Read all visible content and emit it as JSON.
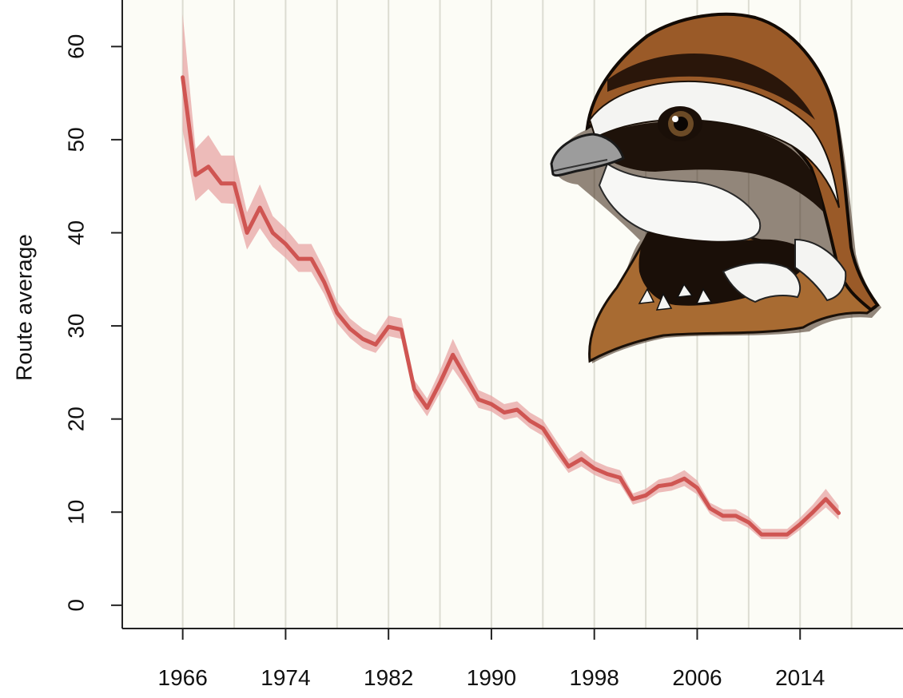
{
  "chart_data": {
    "type": "line",
    "title": "",
    "xlabel": "",
    "ylabel": "Route average",
    "xlim": [
      1961.3,
      2022
    ],
    "ylim": [
      -2.5,
      65
    ],
    "xticks": [
      1966,
      1974,
      1982,
      1990,
      1998,
      2006,
      2014
    ],
    "xtick_labels": [
      "1966",
      "1974",
      "1982",
      "1990",
      "1998",
      "2006",
      "2014"
    ],
    "yticks": [
      0,
      10,
      20,
      30,
      40,
      50,
      60
    ],
    "ytick_labels": [
      "0",
      "10",
      "20",
      "30",
      "40",
      "50",
      "60"
    ],
    "gridlines_x": [
      1966,
      1970,
      1974,
      1978,
      1982,
      1986,
      1990,
      1994,
      1998,
      2002,
      2006,
      2010,
      2014,
      2018
    ],
    "grid": "vertical",
    "legend": "none",
    "colors": {
      "line": "#cf5552",
      "band": "#e8a6a4",
      "plot_bg": "#fcfcf6",
      "grid": "#dcdcd2",
      "axis": "#222222"
    },
    "x": [
      1966,
      1967,
      1968,
      1969,
      1970,
      1971,
      1972,
      1973,
      1974,
      1975,
      1976,
      1977,
      1978,
      1979,
      1980,
      1981,
      1982,
      1983,
      1984,
      1985,
      1986,
      1987,
      1988,
      1989,
      1990,
      1991,
      1992,
      1993,
      1994,
      1995,
      1996,
      1997,
      1998,
      1999,
      2000,
      2001,
      2002,
      2003,
      2004,
      2005,
      2006,
      2007,
      2008,
      2009,
      2010,
      2011,
      2012,
      2013,
      2014,
      2015,
      2016,
      2017
    ],
    "series": [
      {
        "values": [
          56.7,
          46.2,
          47.1,
          45.3,
          45.3,
          40.0,
          42.7,
          40.0,
          38.8,
          37.2,
          37.2,
          34.7,
          31.4,
          29.7,
          28.6,
          28.0,
          29.9,
          29.6,
          23.2,
          21.2,
          23.9,
          26.9,
          24.5,
          22.1,
          21.6,
          20.7,
          21.0,
          19.8,
          19.0,
          16.9,
          14.9,
          15.7,
          14.7,
          14.1,
          13.7,
          11.4,
          11.8,
          12.8,
          13.0,
          13.6,
          12.6,
          10.4,
          9.6,
          9.6,
          8.9,
          7.6,
          7.6,
          7.6,
          8.7,
          10.0,
          11.4,
          9.9
        ],
        "lower": [
          51.0,
          43.4,
          44.7,
          43.2,
          43.1,
          38.2,
          40.5,
          38.5,
          37.3,
          35.8,
          35.8,
          33.4,
          30.3,
          28.7,
          27.6,
          27.1,
          28.9,
          28.6,
          22.3,
          20.3,
          22.8,
          25.4,
          23.4,
          21.2,
          20.8,
          19.9,
          20.2,
          19.0,
          18.2,
          16.1,
          14.2,
          14.9,
          14.0,
          13.4,
          13.0,
          10.8,
          11.2,
          12.1,
          12.3,
          12.8,
          11.9,
          9.8,
          9.0,
          9.0,
          8.3,
          7.1,
          7.1,
          7.1,
          8.1,
          9.3,
          10.5,
          9.2
        ],
        "upper": [
          63.5,
          49.0,
          50.5,
          48.3,
          48.3,
          42.2,
          45.2,
          41.8,
          40.5,
          38.8,
          38.8,
          36.1,
          32.6,
          30.8,
          29.7,
          29.0,
          31.1,
          30.8,
          24.2,
          22.2,
          25.2,
          28.6,
          25.7,
          23.1,
          22.5,
          21.6,
          21.9,
          20.7,
          19.9,
          17.8,
          15.7,
          16.6,
          15.5,
          14.9,
          14.5,
          12.0,
          12.5,
          13.5,
          13.8,
          14.5,
          13.4,
          11.0,
          10.3,
          10.3,
          9.5,
          8.2,
          8.2,
          8.2,
          9.4,
          10.8,
          12.5,
          10.7
        ]
      }
    ]
  },
  "illustration": {
    "name": "quail-head-illustration",
    "subject": "northern bobwhite quail head"
  }
}
